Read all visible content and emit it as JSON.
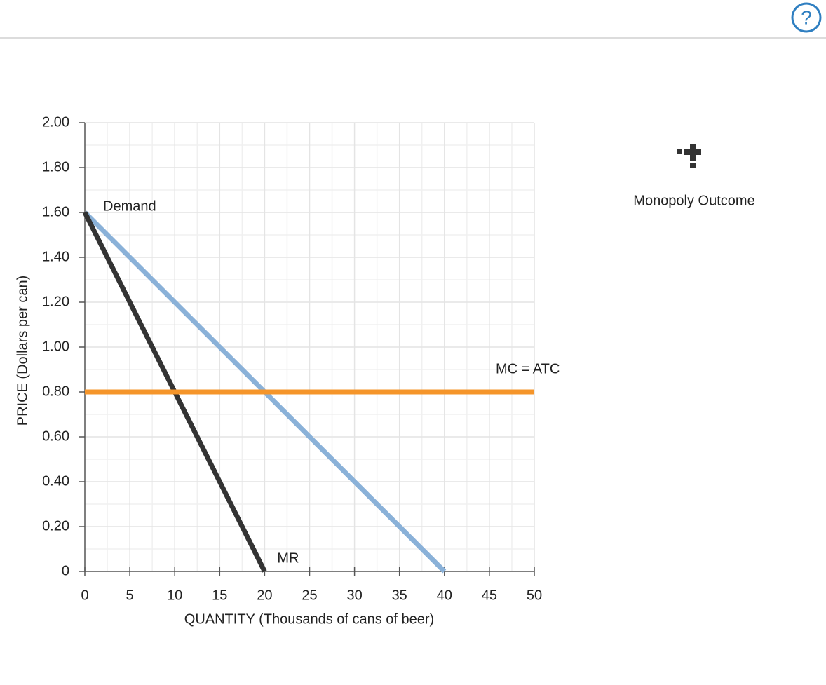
{
  "toolbar": {
    "help": "?"
  },
  "palette": {
    "tool": "Monopoly Outcome"
  },
  "chart_data": {
    "type": "line",
    "x_label": "QUANTITY (Thousands of cans of beer)",
    "y_label": "PRICE (Dollars per can)",
    "xlim": [
      0,
      50
    ],
    "ylim": [
      0,
      2
    ],
    "xticks": [
      0,
      5,
      10,
      15,
      20,
      25,
      30,
      35,
      40,
      45,
      50
    ],
    "yticks": [
      0,
      {
        "value": 0.2,
        "label": "0.20"
      },
      {
        "value": 0.4,
        "label": "0.40"
      },
      {
        "value": 0.6,
        "label": "0.60"
      },
      {
        "value": 0.8,
        "label": "0.80"
      },
      {
        "value": 1,
        "label": "1.00"
      },
      {
        "value": 1.2,
        "label": "1.20"
      },
      {
        "value": 1.4,
        "label": "1.40"
      },
      {
        "value": 1.6,
        "label": "1.60"
      },
      {
        "value": 1.8,
        "label": "1.80"
      },
      {
        "value": 2,
        "label": "2.00"
      }
    ],
    "grid": true,
    "series": [
      {
        "name": "Demand",
        "color": "#8ab1d8",
        "x": [
          0,
          40
        ],
        "values": [
          1.6,
          0
        ]
      },
      {
        "name": "MR",
        "color": "#333333",
        "x": [
          0,
          20
        ],
        "values": [
          1.6,
          0
        ]
      },
      {
        "name": "MC = ATC",
        "color": "#f5952a",
        "x": [
          0,
          50
        ],
        "values": [
          0.8,
          0.8
        ]
      }
    ]
  }
}
